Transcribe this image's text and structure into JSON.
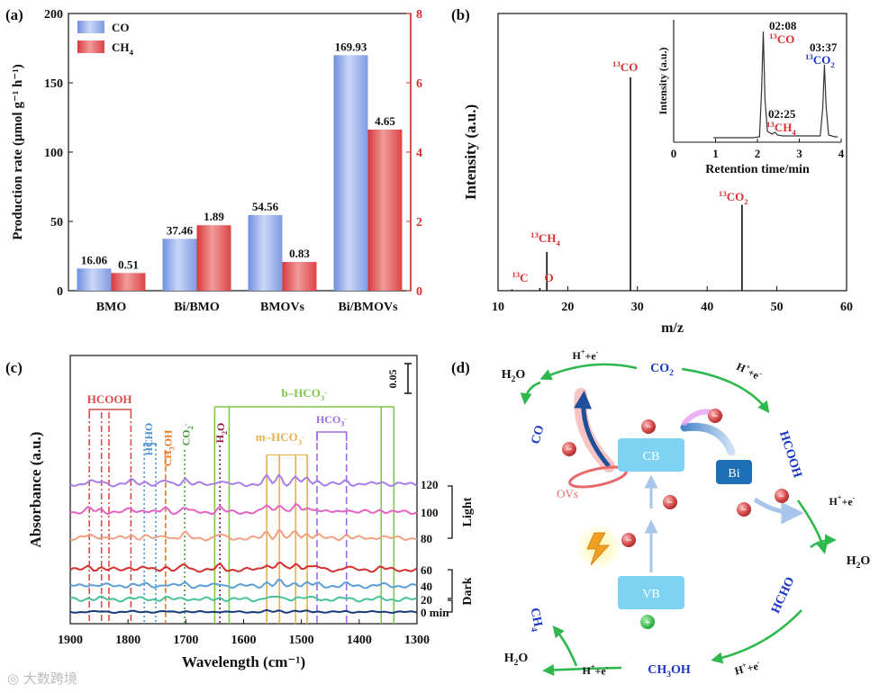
{
  "panels": {
    "a": "(a)",
    "b": "(b)",
    "c": "(c)",
    "d": "(d)"
  },
  "colors": {
    "co": "#8fa9e6",
    "ch4": "#e25556",
    "axis_red": "#d83030",
    "green": "#2eb84d",
    "blue": "#1a35c4"
  },
  "chart_data": [
    {
      "id": "a",
      "type": "bar",
      "categories": [
        "BMO",
        "Bi/BMO",
        "BMOVs",
        "Bi/BMOVs"
      ],
      "series": [
        {
          "name": "CO",
          "axis": "left",
          "values": [
            16.06,
            37.46,
            54.56,
            169.93
          ],
          "labels": [
            "16.06",
            "37.46",
            "54.56",
            "169.93"
          ]
        },
        {
          "name": "CH",
          "sub": "4",
          "axis": "right",
          "values": [
            0.51,
            1.89,
            0.83,
            4.65
          ],
          "labels": [
            "0.51",
            "1.89",
            "0.83",
            "4.65"
          ]
        }
      ],
      "ylabel": "Production rate (μmol g⁻¹ h⁻¹)",
      "ylim": [
        0,
        200
      ],
      "yticks": [
        "0",
        "50",
        "100",
        "150",
        "200"
      ],
      "y2lim": [
        0,
        8
      ],
      "y2ticks": [
        "0",
        "2",
        "4",
        "6",
        "8"
      ]
    },
    {
      "id": "b",
      "type": "bar",
      "x": [
        12,
        16,
        17,
        29,
        45
      ],
      "values": [
        0.5,
        1,
        14,
        77,
        31
      ],
      "peak_labels": [
        {
          "x": 12.5,
          "pre": "13",
          "text": "C",
          "sub": ""
        },
        {
          "x": 16,
          "pre": "",
          "text": "O",
          "sub": ""
        },
        {
          "x": 17,
          "pre": "13",
          "text": "CH",
          "sub": "4"
        },
        {
          "x": 29,
          "pre": "13",
          "text": "CO",
          "sub": ""
        },
        {
          "x": 45,
          "pre": "13",
          "text": "CO",
          "sub": "2"
        }
      ],
      "xlabel": "m/z",
      "ylabel": "Intensity (a.u.)",
      "xlim": [
        10,
        60
      ],
      "xticks": [
        "10",
        "20",
        "30",
        "40",
        "50",
        "60"
      ],
      "inset": {
        "type": "line",
        "xlabel": "Retention time/min",
        "ylabel": "Intensity (a.u.)",
        "xlim": [
          0,
          4
        ],
        "xticks": [
          "0",
          "1",
          "2",
          "3",
          "4"
        ],
        "annotations": [
          {
            "time": "02:08",
            "pre": "13",
            "text": "CO",
            "sub": ""
          },
          {
            "time": "02:25",
            "pre": "13",
            "text": "CH",
            "sub": "4"
          },
          {
            "time": "03:37",
            "pre": "13",
            "text": "CO",
            "sub": "2"
          }
        ]
      }
    },
    {
      "id": "c",
      "type": "line",
      "xlabel": "Wavelength (cm⁻¹)",
      "ylabel": "Absorbance (a.u.)",
      "xlim": [
        1900,
        1300
      ],
      "xticks": [
        "1900",
        "1800",
        "1700",
        "1600",
        "1500",
        "1400",
        "1300"
      ],
      "scale_bar": "0.05",
      "series": [
        {
          "name": "120",
          "color": "#a87ee8"
        },
        {
          "name": "100",
          "color": "#e563c2"
        },
        {
          "name": "80",
          "color": "#f0a183"
        },
        {
          "name": "60",
          "color": "#d43030"
        },
        {
          "name": "40",
          "color": "#5c9fd8"
        },
        {
          "name": "20",
          "color": "#49c39a"
        },
        {
          "name": "0 min",
          "color": "#173b7a"
        }
      ],
      "groups": [
        "Light",
        "Dark"
      ],
      "bands": [
        {
          "label": "HCOOH",
          "sub": "",
          "sup": "",
          "color": "#d94a4a"
        },
        {
          "label": "HCHO",
          "sub": "",
          "sup": "",
          "color": "#4a8fd0"
        },
        {
          "label": "CH",
          "sub": "3",
          "suffix": "OH",
          "color": "#e87a2c"
        },
        {
          "label": "CO",
          "sub": "2",
          "sup": "-",
          "color": "#4a9a3a"
        },
        {
          "label": "H",
          "sub": "2",
          "suffix": "O",
          "color": "#8a1f3a"
        },
        {
          "label": "m–HCO",
          "sub": "3",
          "sup": "-",
          "color": "#e8b04a"
        },
        {
          "label": "HCO",
          "sub": "3",
          "sup": "-",
          "color": "#9a6ae0"
        },
        {
          "label": "b–HCO",
          "sub": "3",
          "sup": "-",
          "color": "#7fc84a"
        }
      ]
    }
  ],
  "diagram": {
    "cb": "CB",
    "vb": "VB",
    "bi": "Bi",
    "ovs": "OVs",
    "co2": "CO",
    "hcooh": "HCOOH",
    "hcho": "HCHO",
    "ch3oh": "CH",
    "ch4": "CH",
    "co": "CO",
    "h2o": "H",
    "proton": "H",
    "electron": "e",
    "minus": "−",
    "plus": "+"
  },
  "watermark": "大数跨境"
}
